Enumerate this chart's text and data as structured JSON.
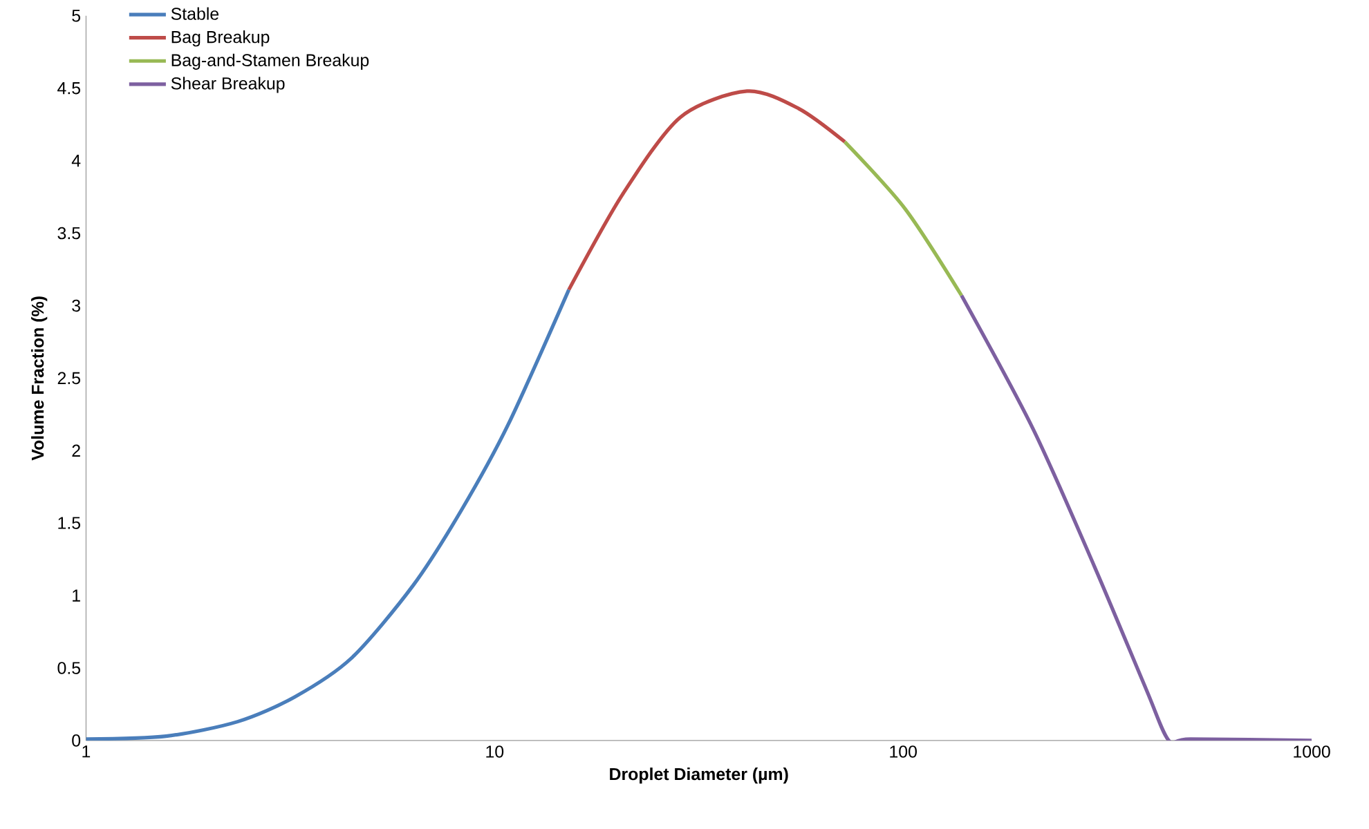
{
  "chart_data": {
    "type": "line",
    "xlabel": "Droplet Diameter (µm)",
    "ylabel": "Volume Fraction (%)",
    "log": "x",
    "xlim": [
      1,
      1000
    ],
    "xticks": [
      1,
      10,
      100,
      1000
    ],
    "ylim": [
      0,
      5
    ],
    "yticks": [
      0,
      0.5,
      1,
      1.5,
      2,
      2.5,
      3,
      3.5,
      4,
      4.5,
      5
    ],
    "grid": false,
    "legend": "top left",
    "marker": "none",
    "line_style": "solid",
    "series": [
      {
        "name": "Stable",
        "color": "#4a7ebb",
        "x": [
          1,
          1.57,
          2.35,
          3.24,
          4.47,
          6.32,
          8.3,
          10.8,
          15.2
        ],
        "values": [
          0.01,
          0.03,
          0.13,
          0.3,
          0.57,
          1.07,
          1.59,
          2.18,
          3.11
        ]
      },
      {
        "name": "Bag Breakup",
        "color": "#be4b48",
        "x": [
          15.2,
          20.6,
          28.5,
          41.5,
          55.5,
          72
        ],
        "values": [
          3.11,
          3.77,
          4.3,
          4.48,
          4.36,
          4.13
        ]
      },
      {
        "name": "Bag-and-Stamen Breakup",
        "color": "#98b954",
        "x": [
          72,
          101,
          139
        ],
        "values": [
          4.13,
          3.67,
          3.07
        ]
      },
      {
        "name": "Shear Breakup",
        "color": "#7d60a0",
        "x": [
          139,
          208,
          294,
          394,
          447,
          505,
          1000
        ],
        "values": [
          3.07,
          2.15,
          1.2,
          0.35,
          0,
          0.01,
          0
        ]
      }
    ]
  }
}
